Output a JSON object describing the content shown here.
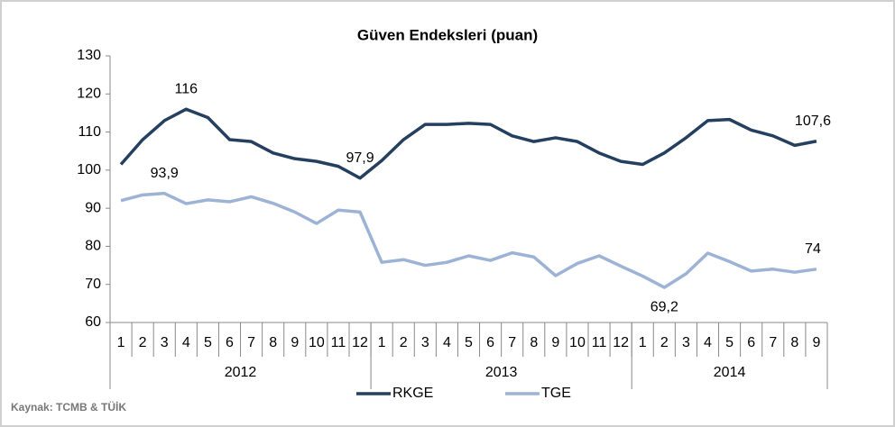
{
  "chart_data": {
    "type": "line",
    "title": "Güven Endeksleri (puan)",
    "source": "Kaynak: TCMB & TÜİK",
    "groups": [
      {
        "label": "2012",
        "categories": [
          "1",
          "2",
          "3",
          "4",
          "5",
          "6",
          "7",
          "8",
          "9",
          "10",
          "11",
          "12"
        ]
      },
      {
        "label": "2013",
        "categories": [
          "1",
          "2",
          "3",
          "4",
          "5",
          "6",
          "7",
          "8",
          "9",
          "10",
          "11",
          "12"
        ]
      },
      {
        "label": "2014",
        "categories": [
          "1",
          "2",
          "3",
          "4",
          "5",
          "6",
          "7",
          "8",
          "9"
        ]
      }
    ],
    "series": [
      {
        "name": "RKGE",
        "color": "#243f60",
        "values": [
          101.5,
          108,
          113,
          116,
          113.8,
          108,
          107.5,
          104.5,
          103,
          102.3,
          101,
          97.9,
          102.5,
          108,
          112,
          112,
          112.3,
          112,
          109,
          107.5,
          108.5,
          107.5,
          104.5,
          102.3,
          101.5,
          104.5,
          108.5,
          113,
          113.3,
          110.5,
          109,
          106.5,
          107.6
        ],
        "value_labels": [
          null,
          null,
          null,
          "116",
          null,
          null,
          null,
          null,
          null,
          null,
          null,
          "97,9",
          null,
          null,
          null,
          null,
          null,
          null,
          null,
          null,
          null,
          null,
          null,
          null,
          null,
          null,
          null,
          null,
          null,
          null,
          null,
          null,
          "107,6"
        ]
      },
      {
        "name": "TGE",
        "color": "#9db3d6",
        "values": [
          92,
          93.5,
          93.9,
          91.2,
          92.2,
          91.7,
          93,
          91.3,
          89,
          86,
          89.5,
          89,
          75.8,
          76.5,
          75,
          75.8,
          77.5,
          76.3,
          78.3,
          77.2,
          72.3,
          75.5,
          77.5,
          74.8,
          72.2,
          69.2,
          72.8,
          78.2,
          76,
          73.5,
          74,
          73.2,
          74
        ],
        "value_labels": [
          null,
          null,
          "93,9",
          null,
          null,
          null,
          null,
          null,
          null,
          null,
          null,
          null,
          null,
          null,
          null,
          null,
          null,
          null,
          null,
          null,
          null,
          null,
          null,
          null,
          null,
          "69,2",
          null,
          null,
          null,
          null,
          null,
          null,
          "74"
        ]
      }
    ],
    "ylim": [
      60,
      130
    ],
    "yticks": [
      60,
      70,
      80,
      90,
      100,
      110,
      120,
      130
    ],
    "grid": false
  }
}
